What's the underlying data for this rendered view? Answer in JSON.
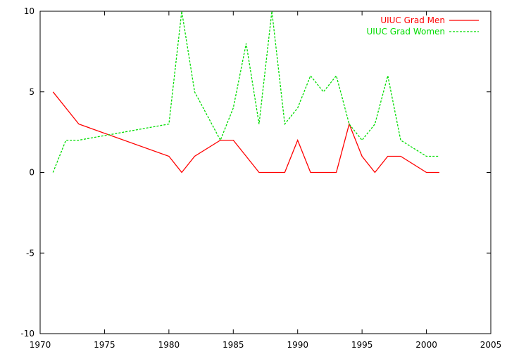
{
  "chart_data": {
    "type": "line",
    "title": "",
    "xlabel": "",
    "ylabel": "",
    "xlim": [
      1970,
      2005
    ],
    "ylim": [
      -10,
      10
    ],
    "grid": false,
    "legend_position": "top-right",
    "x_ticks": [
      "1970",
      "1975",
      "1980",
      "1985",
      "1990",
      "1995",
      "2000",
      "2005"
    ],
    "y_ticks": [
      "-10",
      "-5",
      "0",
      "5",
      "10"
    ],
    "series": [
      {
        "name": "UIUC Grad Men",
        "color": "#ff0000",
        "dash": "solid",
        "x": [
          1971,
          1973,
          1980,
          1981,
          1982,
          1984,
          1985,
          1986,
          1987,
          1988,
          1989,
          1990,
          1991,
          1992,
          1993,
          1994,
          1995,
          1996,
          1997,
          1998,
          2000,
          2001
        ],
        "y": [
          5,
          3,
          1,
          0,
          1,
          2,
          2,
          1,
          0,
          0,
          0,
          2,
          0,
          0,
          0,
          3,
          1,
          0,
          1,
          1,
          0,
          0
        ]
      },
      {
        "name": "UIUC Grad Women",
        "color": "#00dd00",
        "dash": "dashed",
        "x": [
          1971,
          1972,
          1973,
          1980,
          1981,
          1982,
          1984,
          1985,
          1986,
          1987,
          1988,
          1989,
          1990,
          1991,
          1992,
          1993,
          1994,
          1995,
          1996,
          1997,
          1998,
          2000,
          2001
        ],
        "y": [
          0,
          2,
          2,
          3,
          10,
          5,
          2,
          4,
          8,
          3,
          10,
          3,
          4,
          6,
          5,
          6,
          3,
          2,
          3,
          6,
          2,
          1,
          1
        ]
      }
    ]
  }
}
